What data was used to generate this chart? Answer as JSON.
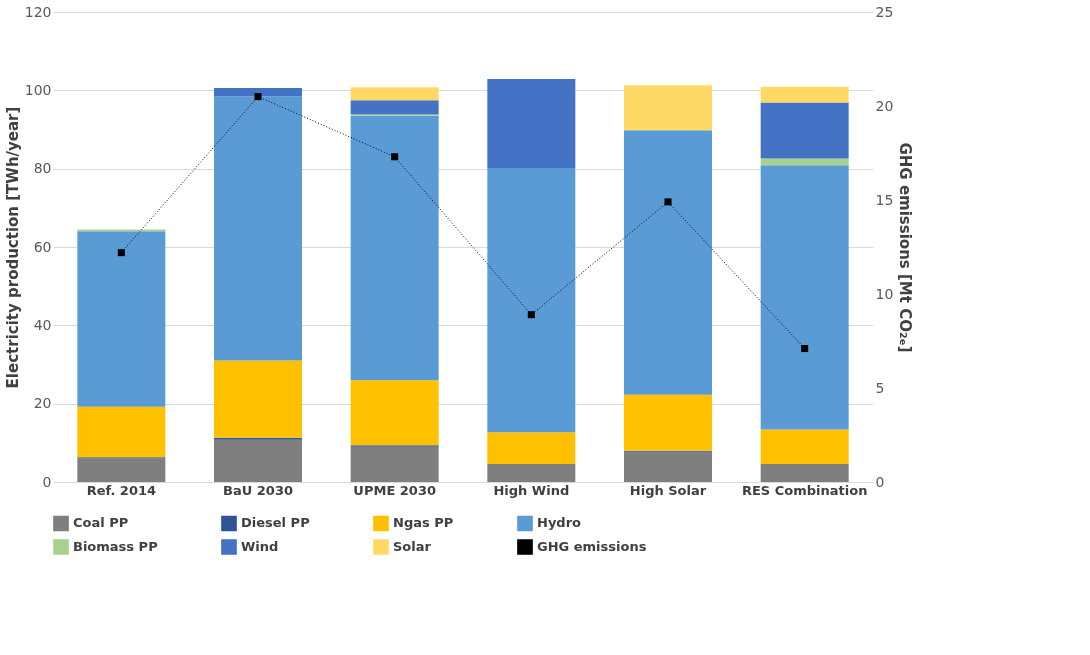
{
  "chart_data": {
    "type": "bar",
    "stacked": true,
    "ylabel": "Electricity production [TWh/year]",
    "y2label": "GHG emissions [Mt CO₂ₑ]",
    "categories": [
      "Ref. 2014",
      "BaU 2030",
      "UPME 2030",
      "High Wind",
      "High Solar",
      "RES Combination"
    ],
    "ylim": [
      0,
      120
    ],
    "yticks": [
      0,
      20,
      40,
      60,
      80,
      100,
      120
    ],
    "y2lim": [
      0,
      25
    ],
    "y2ticks": [
      0,
      5,
      10,
      15,
      20,
      25
    ],
    "grid": "y",
    "legend": "bottom",
    "series": [
      {
        "name": "Coal PP",
        "color": "#7f7f7f",
        "values": [
          6.0,
          10.8,
          9.0,
          4.6,
          7.7,
          4.6
        ]
      },
      {
        "name": "Diesel PP",
        "color": "#2f5597",
        "values": [
          0.3,
          0.5,
          0.4,
          null,
          0.3,
          null
        ]
      },
      {
        "name": "Ngas PP",
        "color": "#ffc000",
        "values": [
          12.9,
          19.7,
          16.6,
          8.1,
          14.3,
          8.8
        ]
      },
      {
        "name": "Hydro",
        "color": "#5b9bd5",
        "values": [
          44.8,
          67.5,
          67.5,
          67.5,
          67.5,
          67.5
        ]
      },
      {
        "name": "Biomass PP",
        "color": "#a9d18e",
        "values": [
          0.5,
          null,
          0.3,
          0,
          null,
          1.7
        ]
      },
      {
        "name": "Wind",
        "color": "#4472c4",
        "values": [
          0,
          2.1,
          3.7,
          22.7,
          0,
          14.3
        ]
      },
      {
        "name": "Solar",
        "color": "#ffd966",
        "values": [
          0,
          0,
          3.3,
          0,
          11.5,
          4.0
        ]
      },
      {
        "name": "GHG emissions",
        "type": "line",
        "axis": "y2",
        "color": "#000000",
        "line_style": "dotted",
        "marker": "square",
        "values": [
          12.2,
          20.5,
          17.3,
          8.9,
          14.9,
          7.1
        ]
      }
    ]
  }
}
